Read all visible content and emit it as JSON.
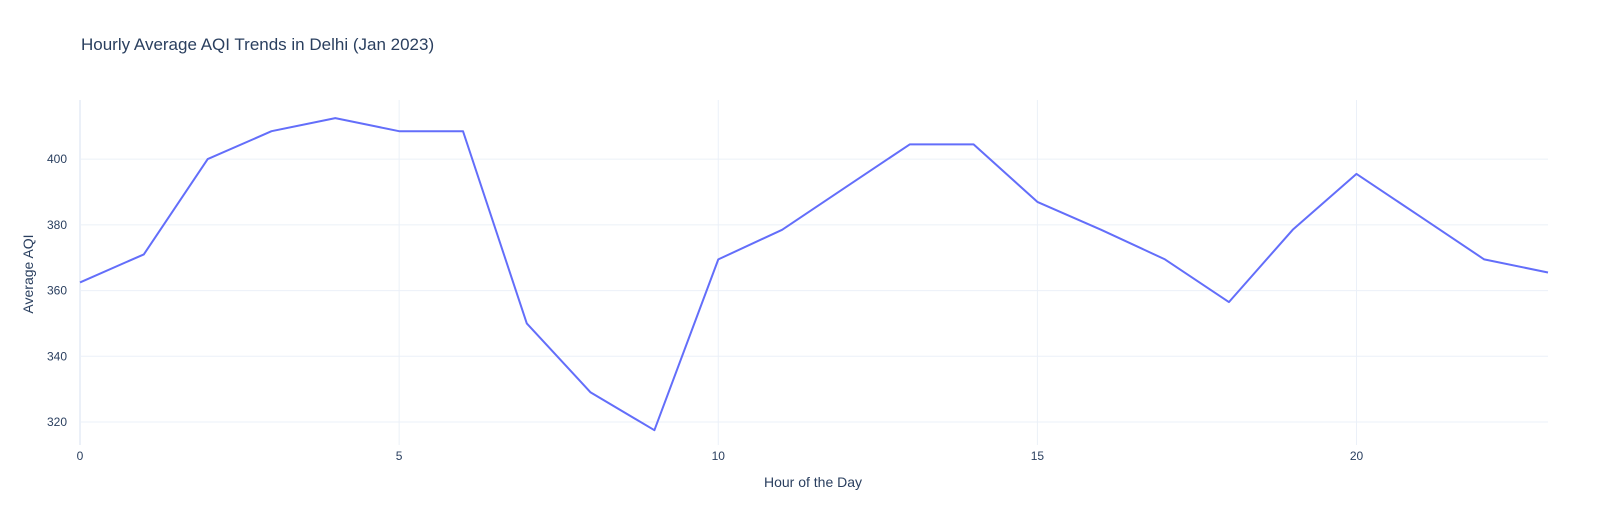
{
  "chart_data": {
    "type": "line",
    "title": "Hourly Average AQI Trends in Delhi (Jan 2023)",
    "xlabel": "Hour of the Day",
    "ylabel": "Average AQI",
    "xlim": [
      0,
      23
    ],
    "ylim": [
      313,
      418
    ],
    "x_ticks": [
      0,
      5,
      10,
      15,
      20
    ],
    "y_ticks": [
      320,
      340,
      360,
      380,
      400
    ],
    "grid": true,
    "legend": "none",
    "series": [
      {
        "color": "#636efa",
        "x": [
          0,
          1,
          2,
          3,
          4,
          5,
          6,
          7,
          8,
          9,
          10,
          11,
          12,
          13,
          14,
          15,
          16,
          17,
          18,
          19,
          20,
          21,
          22,
          23
        ],
        "y": [
          362.5,
          371,
          400,
          408.5,
          412.5,
          408.5,
          408.5,
          350,
          329,
          317.5,
          369.5,
          378.5,
          391.5,
          404.5,
          404.5,
          387,
          378.5,
          369.5,
          356.5,
          378.5,
          395.5,
          382.5,
          369.5,
          365.5
        ]
      }
    ]
  }
}
